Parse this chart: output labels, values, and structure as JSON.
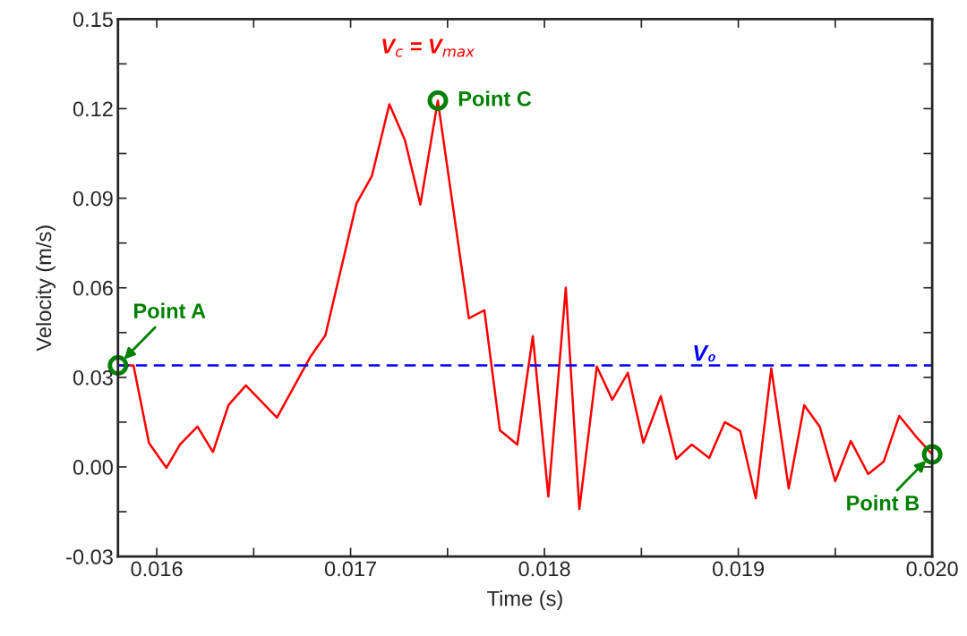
{
  "chart_data": {
    "type": "line",
    "xlabel": "Time (s)",
    "ylabel": "Velocity (m/s)",
    "xlim": [
      0.0158,
      0.02
    ],
    "ylim": [
      -0.03,
      0.15
    ],
    "xticks": [
      0.016,
      {
        "value": 0.0165,
        "label": null
      },
      0.017,
      {
        "value": 0.0175,
        "label": null
      },
      0.018,
      {
        "value": 0.0185,
        "label": null
      },
      0.019,
      {
        "value": 0.0195,
        "label": null
      },
      {
        "value": 0.02,
        "label": "0.020"
      }
    ],
    "yticks": [
      {
        "value": -0.03,
        "label": "-0.03"
      },
      {
        "value": -0.015,
        "label": null
      },
      {
        "value": 0,
        "label": "0.00"
      },
      {
        "value": 0.015,
        "label": null
      },
      {
        "value": 0.03,
        "label": "0.03"
      },
      {
        "value": 0.045,
        "label": null
      },
      {
        "value": 0.06,
        "label": "0.06"
      },
      {
        "value": 0.075,
        "label": null
      },
      {
        "value": 0.09,
        "label": "0.09"
      },
      {
        "value": 0.105,
        "label": null
      },
      {
        "value": 0.12,
        "label": "0.12"
      },
      {
        "value": 0.135,
        "label": null
      },
      {
        "value": 0.15,
        "label": "0.15"
      }
    ],
    "grid": false,
    "legend": false,
    "marker": "none",
    "line_style": "solid",
    "series": [
      {
        "color": "#ff0000",
        "x": [
          0.0158,
          0.01588,
          0.01596,
          0.01605,
          0.01612,
          0.01621,
          0.01629,
          0.01637,
          0.01646,
          0.01662,
          0.01679,
          0.01687,
          0.01703,
          0.01711,
          0.0172,
          0.01728,
          0.01736,
          0.01745,
          0.01761,
          0.01769,
          0.01777,
          0.01786,
          0.01794,
          0.01802,
          0.01811,
          0.01818,
          0.01827,
          0.01835,
          0.01843,
          0.01851,
          0.0186,
          0.01868,
          0.01876,
          0.01885,
          0.01893,
          0.01901,
          0.01909,
          0.01917,
          0.01926,
          0.01934,
          0.01942,
          0.0195,
          0.01958,
          0.01967,
          0.01975,
          0.01983,
          0.01992,
          0.02
        ],
        "values": [
          0.034,
          0.034,
          0.008,
          -0.0003,
          0.0075,
          0.0135,
          0.005,
          0.0207,
          0.0273,
          0.0165,
          0.0366,
          0.0441,
          0.0882,
          0.0975,
          0.1215,
          0.1095,
          0.0879,
          0.1227,
          0.0498,
          0.0525,
          0.0123,
          0.0075,
          0.0438,
          -0.0099,
          0.06,
          -0.0141,
          0.0336,
          0.0225,
          0.0315,
          0.0081,
          0.0237,
          0.0027,
          0.0075,
          0.003,
          0.015,
          0.012,
          -0.0105,
          0.033,
          -0.0072,
          0.0207,
          0.0135,
          -0.0048,
          0.0087,
          -0.0024,
          0.0018,
          0.0171,
          0.0099,
          0.0042
        ]
      }
    ],
    "ref_lines": [
      {
        "axis": "y",
        "value": 0.034,
        "label": "V₀",
        "color": "#0000ff",
        "line_style": "dashed"
      }
    ],
    "annotations": [
      {
        "text": "Point A",
        "x": 0.0158,
        "y": 0.034
      },
      {
        "text": "Point C",
        "x": 0.01745,
        "y": 0.1227
      },
      {
        "text": "Point B",
        "x": 0.02,
        "y": 0.0042
      },
      "V$_{c}$ = V$_{max}$"
    ]
  }
}
